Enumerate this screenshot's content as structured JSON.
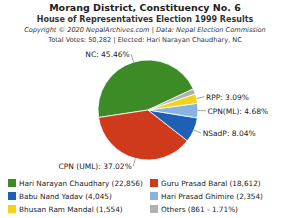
{
  "chart_data": {
    "type": "pie",
    "title": "Morang District, Constituency No. 6",
    "subtitle": "House of Representatives Election 1999 Results",
    "annotations": [
      "Copyright © 2020 NepalArchives.com | Data: Nepal Election Commission",
      "Total Votes: 50,282 | Elected: Hari Narayan Chaudhary, NC"
    ],
    "categories": [
      "Hari Narayan Chaudhary (22,856)",
      "Guru Prasad Baral (18,612)",
      "Babu Nand Yadav (4,045)",
      "Hari Prasad Ghimire (2,354)",
      "Bhusan Ram Mandal (1,554)",
      "Others (861 - 1.71%)"
    ],
    "values": [
      45.46,
      37.02,
      8.04,
      4.68,
      3.09,
      1.71
    ],
    "value_labels": [
      "NC: 45.46%",
      "CPN (UML): 37.02%",
      "NSadP: 8.04%",
      "CPN(ML): 4.68%",
      "RPP: 3.09%",
      null
    ],
    "colors": [
      "#3d8b26",
      "#cf3a1c",
      "#1f5fb4",
      "#89b4e0",
      "#f2d21b",
      "#b0b0b0"
    ],
    "data_labels": true,
    "legend": "bottom"
  }
}
